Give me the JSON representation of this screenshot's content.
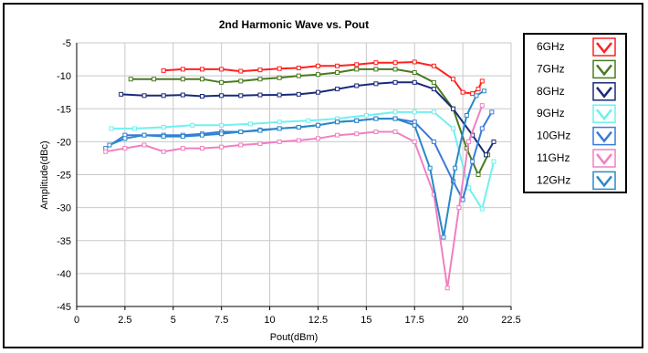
{
  "chart_data": {
    "type": "line",
    "title": "2nd Harmonic Wave vs. Pout",
    "xlabel": "Pout(dBm)",
    "ylabel": "Amplitude(dBc)",
    "xlim": [
      0,
      22.5
    ],
    "ylim": [
      -45,
      -5
    ],
    "x_ticks": [
      "0",
      "2.5",
      "5",
      "7.5",
      "10",
      "12.5",
      "15",
      "17.5",
      "20",
      "22.5"
    ],
    "y_ticks": [
      "-5",
      "-10",
      "-15",
      "-20",
      "-25",
      "-30",
      "-35",
      "-40",
      "-45"
    ],
    "grid": true,
    "legend_position": "right",
    "series": [
      {
        "name": "6GHz",
        "color": "#ff2020",
        "x": [
          4.5,
          5.5,
          6.5,
          7.5,
          8.5,
          9.5,
          10.5,
          11.5,
          12.5,
          13.5,
          14.5,
          15.5,
          16.5,
          17.5,
          18.5,
          19.5,
          20,
          20.5,
          20.8,
          21
        ],
        "y": [
          -9.2,
          -9.0,
          -9.0,
          -9.0,
          -9.3,
          -9.1,
          -8.9,
          -8.8,
          -8.5,
          -8.5,
          -8.3,
          -8.0,
          -8.0,
          -7.9,
          -8.5,
          -10.5,
          -12.5,
          -12.7,
          -12,
          -10.8
        ]
      },
      {
        "name": "7GHz",
        "color": "#4a7a20",
        "x": [
          2.8,
          4,
          5.5,
          6.5,
          7.5,
          8.5,
          9.5,
          10.5,
          11.5,
          12.5,
          13.5,
          14.5,
          15.5,
          16.5,
          17.5,
          18.5,
          19.5,
          20.2,
          20.8,
          21.3
        ],
        "y": [
          -10.5,
          -10.5,
          -10.5,
          -10.5,
          -11.0,
          -10.8,
          -10.5,
          -10.3,
          -10.0,
          -9.8,
          -9.5,
          -9.0,
          -9.0,
          -9.0,
          -9.5,
          -11.0,
          -15.0,
          -21.0,
          -25.0,
          -22.0
        ]
      },
      {
        "name": "8GHz",
        "color": "#1a2a7a",
        "x": [
          2.3,
          3.5,
          4.5,
          5.5,
          6.5,
          7.5,
          8.5,
          9.5,
          10.5,
          11.5,
          12.5,
          13.5,
          14.5,
          15.5,
          16.5,
          17.5,
          18.5,
          19.5,
          20.5,
          21.2,
          21.6
        ],
        "y": [
          -12.8,
          -13.0,
          -13.0,
          -12.9,
          -13.1,
          -13.0,
          -13.0,
          -12.9,
          -12.9,
          -12.8,
          -12.5,
          -12.0,
          -11.5,
          -11.2,
          -11.0,
          -11.0,
          -12.0,
          -15.0,
          -19.0,
          -22.0,
          -20.0
        ]
      },
      {
        "name": "9GHz",
        "color": "#70f0f0",
        "x": [
          1.8,
          3,
          4.5,
          6,
          7.5,
          9,
          10.5,
          12,
          13.5,
          15,
          16.5,
          17.5,
          18.5,
          19.5,
          20.3,
          21,
          21.6
        ],
        "y": [
          -18.0,
          -18.0,
          -17.8,
          -17.5,
          -17.5,
          -17.3,
          -17.0,
          -16.8,
          -16.5,
          -16.0,
          -15.5,
          -15.5,
          -15.5,
          -18.0,
          -27.0,
          -30.2,
          -23.0
        ]
      },
      {
        "name": "10GHz",
        "color": "#3a7ad8",
        "x": [
          1.5,
          2.5,
          3.5,
          4.5,
          5.5,
          6.5,
          7.5,
          8.5,
          9.5,
          10.5,
          11.5,
          12.5,
          13.5,
          14.5,
          15.5,
          16.5,
          17.5,
          18.5,
          19.5,
          20,
          20.5,
          21,
          21.5
        ],
        "y": [
          -21.0,
          -19.0,
          -19.0,
          -19.0,
          -19.0,
          -18.8,
          -18.5,
          -18.5,
          -18.2,
          -18.0,
          -17.8,
          -17.5,
          -17.0,
          -16.8,
          -16.5,
          -16.5,
          -17.0,
          -20.0,
          -26.0,
          -28.8,
          -23.0,
          -18.0,
          -15.5
        ]
      },
      {
        "name": "11GHz",
        "color": "#f080c0",
        "x": [
          1.5,
          2.5,
          3.5,
          4.5,
          5.5,
          6.5,
          7.5,
          8.5,
          9.5,
          10.5,
          11.5,
          12.5,
          13.5,
          14.5,
          15.5,
          16.5,
          17.5,
          18.5,
          19.2,
          19.8,
          20.3,
          21
        ],
        "y": [
          -21.5,
          -21.0,
          -20.5,
          -21.5,
          -21.0,
          -21.0,
          -20.8,
          -20.5,
          -20.3,
          -20.0,
          -19.8,
          -19.5,
          -19.0,
          -18.8,
          -18.5,
          -18.5,
          -20.0,
          -28.0,
          -42.2,
          -30.0,
          -20.0,
          -14.5
        ]
      },
      {
        "name": "12GHz",
        "color": "#2a88c8",
        "x": [
          1.7,
          2.5,
          3.5,
          4.5,
          5.5,
          6.5,
          7.5,
          8.5,
          9.5,
          10.5,
          11.5,
          12.5,
          13.5,
          14.5,
          15.5,
          16.5,
          17.5,
          18.3,
          19.0,
          19.6,
          20.2,
          20.7,
          21.1
        ],
        "y": [
          -20.5,
          -19.5,
          -19.0,
          -19.2,
          -19.2,
          -19.0,
          -18.8,
          -18.5,
          -18.3,
          -18.0,
          -17.8,
          -17.5,
          -17.0,
          -16.8,
          -16.5,
          -16.5,
          -17.5,
          -24.0,
          -34.5,
          -24.0,
          -16.0,
          -13.0,
          -12.3
        ]
      }
    ]
  }
}
